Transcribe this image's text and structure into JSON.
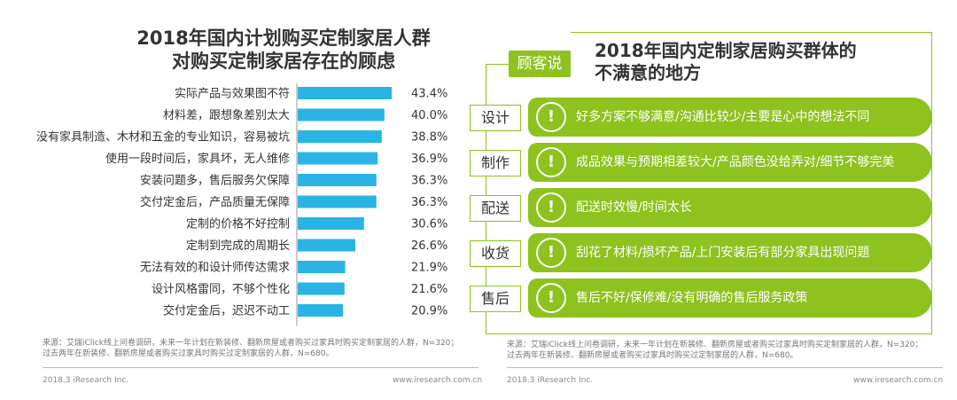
{
  "left": {
    "title_line1": "2018年国内计划购买定制家居人群",
    "title_line2": "对购买定制家居存在的顾虑",
    "footnote_line1": "来源：艾瑞iClick线上问卷调研，未来一年计划在新装修、翻新房屋或者购买过家具时购买定制家居的人群，N=320；",
    "footnote_line2": "过去两年在新装修、翻新房屋或者购买过家具时购买过定制家居的人群，N=680。",
    "footer_left": "2018.3 iResearch Inc.",
    "footer_right": "www.iresearch.com.cn"
  },
  "chart_data": {
    "type": "bar",
    "orientation": "horizontal",
    "title": "2018年国内计划购买定制家居人群对购买定制家居存在的顾虑",
    "categories": [
      "实际产品与效果图不符",
      "材料差，跟想象差别太大",
      "没有家具制造、木材和五金的专业知识，容易被坑",
      "使用一段时间后，家具坏，无人维修",
      "安装问题多，售后服务欠保障",
      "交付定金后，产品质量无保障",
      "定制的价格不好控制",
      "定制到完成的周期长",
      "无法有效的和设计师传达需求",
      "设计风格雷同，不够个性化",
      "交付定金后，迟迟不动工"
    ],
    "values": [
      43.4,
      40.0,
      38.8,
      36.9,
      36.3,
      36.3,
      30.6,
      26.6,
      21.9,
      21.6,
      20.9
    ],
    "value_labels": [
      "43.4%",
      "40.0%",
      "38.8%",
      "36.9%",
      "36.3%",
      "36.3%",
      "30.6%",
      "26.6%",
      "21.9%",
      "21.6%",
      "20.9%"
    ],
    "xlim": [
      0,
      45
    ],
    "bar_color": "#29b4e4",
    "label_color": "#333333"
  },
  "right": {
    "badge": "顾客说",
    "title_line1": "2018年国内定制家居购买群体的",
    "title_line2": "不满意的地方",
    "accent_color": "#8dc21f",
    "icon": "exclamation-icon",
    "icon_glyph": "!",
    "items": [
      {
        "label": "设计",
        "text": "好多方案不够满意/沟通比较少/主要是心中的想法不同"
      },
      {
        "label": "制作",
        "text": "成品效果与预期相差较大/产品颜色没给弄对/细节不够完美"
      },
      {
        "label": "配送",
        "text": "配送时效慢/时间太长"
      },
      {
        "label": "收货",
        "text": "刮花了材料/损坏产品/上门安装后有部分家具出现问题"
      },
      {
        "label": "售后",
        "text": "售后不好/保修难/没有明确的售后服务政策"
      }
    ],
    "footnote_line1": "来源：艾瑞iClick线上问卷调研，未来一年计划在新装修、翻新房屋或者购买过家具时购买定制家居的人群，N=320；",
    "footnote_line2": "过去两年在新装修、翻新房屋或者购买过家具时购买过定制家居的人群，N=680。",
    "footer_left": "2018.3 iResearch Inc.",
    "footer_right": "www.iresearch.com.cn"
  }
}
